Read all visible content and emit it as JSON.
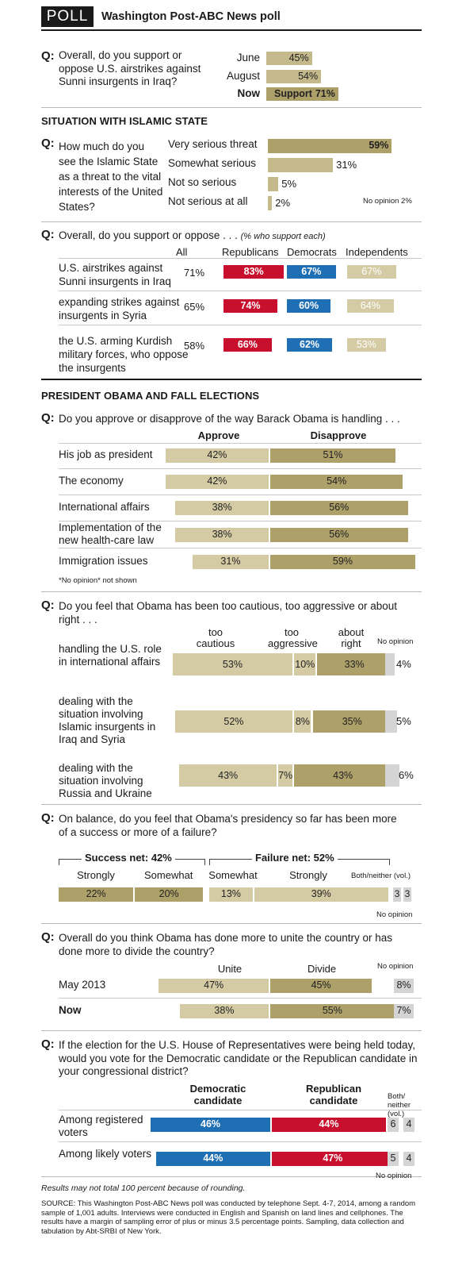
{
  "header": {
    "badge": "POLL",
    "title": "Washington Post-ABC News poll"
  },
  "q_marker": "Q:",
  "chart_data": [
    {
      "type": "bar",
      "question": "Overall, do you support or oppose U.S. airstrikes against Sunni insurgents in Iraq?",
      "categories": [
        "June",
        "August",
        "Now"
      ],
      "values": [
        45,
        54,
        71
      ],
      "value_labels": [
        "45%",
        "54%",
        "71%"
      ],
      "bar_text": "Support",
      "xlim": [
        0,
        100
      ]
    },
    {
      "type": "bar",
      "section": "SITUATION WITH ISLAMIC STATE",
      "question": "How much do you see the Islamic State as a threat to the vital interests of the United States?",
      "categories": [
        "Very serious threat",
        "Somewhat serious",
        "Not so serious",
        "Not serious at all"
      ],
      "values": [
        59,
        31,
        5,
        2
      ],
      "value_labels": [
        "59%",
        "31%",
        "5%",
        "2%"
      ],
      "note": "No opinion 2%",
      "xlim": [
        0,
        100
      ]
    },
    {
      "type": "table",
      "question": "Overall, do you support or oppose . . .",
      "question_note": "(% who support each)",
      "columns": [
        "All",
        "Republicans",
        "Democrats",
        "Independents"
      ],
      "rows": [
        {
          "label": "U.S. airstrikes against Sunni insurgents in Iraq",
          "all": "71%",
          "values": [
            83,
            67,
            67
          ],
          "labels": [
            "83%",
            "67%",
            "67%"
          ]
        },
        {
          "label": "expanding strikes against insurgents in Syria",
          "all": "65%",
          "values": [
            74,
            60,
            64
          ],
          "labels": [
            "74%",
            "60%",
            "64%"
          ]
        },
        {
          "label": "the U.S. arming Kurdish military forces, who oppose the insurgents",
          "all": "58%",
          "values": [
            66,
            62,
            53
          ],
          "labels": [
            "66%",
            "62%",
            "53%"
          ]
        }
      ]
    },
    {
      "type": "bar",
      "section": "PRESIDENT OBAMA AND FALL ELECTIONS",
      "question": "Do you approve or disapprove of the way Barack Obama is handling . . .",
      "series": [
        {
          "name": "Approve"
        },
        {
          "name": "Disapprove"
        }
      ],
      "rows": [
        {
          "label": "His job as president",
          "values": [
            42,
            51
          ],
          "labels": [
            "42%",
            "51%"
          ]
        },
        {
          "label": "The economy",
          "values": [
            42,
            54
          ],
          "labels": [
            "42%",
            "54%"
          ]
        },
        {
          "label": "International affairs",
          "values": [
            38,
            56
          ],
          "labels": [
            "38%",
            "56%"
          ]
        },
        {
          "label": "Implementation of the new health-care law",
          "values": [
            38,
            56
          ],
          "labels": [
            "38%",
            "56%"
          ]
        },
        {
          "label": "Immigration issues",
          "values": [
            31,
            59
          ],
          "labels": [
            "31%",
            "59%"
          ]
        }
      ],
      "note": "*No opinion* not shown"
    },
    {
      "type": "bar",
      "question": "Do you feel that Obama has been too cautious, too aggressive or about right . . .",
      "series": [
        {
          "name": "too cautious"
        },
        {
          "name": "too aggressive"
        },
        {
          "name": "about right"
        },
        {
          "name": "No opinion"
        }
      ],
      "rows": [
        {
          "label": "handling the U.S. role in international affairs",
          "values": [
            53,
            10,
            33,
            4
          ],
          "labels": [
            "53%",
            "10%",
            "33%",
            "4%"
          ]
        },
        {
          "label": "dealing with the situation involving Islamic insurgents in Iraq and Syria",
          "values": [
            52,
            8,
            35,
            5
          ],
          "labels": [
            "52%",
            "8%",
            "35%",
            "5%"
          ]
        },
        {
          "label": "dealing with the situation involving Russia and Ukraine",
          "values": [
            43,
            7,
            43,
            6
          ],
          "labels": [
            "43%",
            "7%",
            "43%",
            "6%"
          ]
        }
      ]
    },
    {
      "type": "bar",
      "question": "On balance, do you feel that Obama's presidency so far has been more of a success or more of a failure?",
      "success_net": "Success net: 42%",
      "failure_net": "Failure net: 52%",
      "series": [
        {
          "name": "Strongly"
        },
        {
          "name": "Somewhat"
        },
        {
          "name": "Somewhat"
        },
        {
          "name": "Strongly"
        },
        {
          "name": "Both/neither (vol.)"
        },
        {
          "name": "No opinion"
        }
      ],
      "values": [
        22,
        20,
        13,
        39,
        3,
        3
      ],
      "labels": [
        "22%",
        "20%",
        "13%",
        "39%",
        "3",
        "3"
      ]
    },
    {
      "type": "bar",
      "question": "Overall do you think Obama has done more to unite the country or has done more to divide the country?",
      "series": [
        {
          "name": "Unite"
        },
        {
          "name": "Divide"
        },
        {
          "name": "No opinion"
        }
      ],
      "rows": [
        {
          "label": "May 2013",
          "values": [
            47,
            45,
            8
          ],
          "labels": [
            "47%",
            "45%",
            "8%"
          ]
        },
        {
          "label": "Now",
          "values": [
            38,
            55,
            7
          ],
          "labels": [
            "38%",
            "55%",
            "7%"
          ]
        }
      ]
    },
    {
      "type": "bar",
      "question": "If the election for the U.S. House of Representatives were being held today, would you vote for the Democratic candidate or the Republican candidate in your congressional district?",
      "series": [
        {
          "name": "Democratic candidate"
        },
        {
          "name": "Republican candidate"
        },
        {
          "name": "Both/ neither (vol.)"
        },
        {
          "name": "No opinion"
        }
      ],
      "rows": [
        {
          "label": "Among registered voters",
          "values": [
            46,
            44,
            6,
            4
          ],
          "labels": [
            "46%",
            "44%",
            "6",
            "4"
          ]
        },
        {
          "label": "Among likely voters",
          "values": [
            44,
            47,
            5,
            4
          ],
          "labels": [
            "44%",
            "47%",
            "5",
            "4"
          ]
        }
      ]
    }
  ],
  "footer": {
    "rounding": "Results may not total 100 percent because of rounding.",
    "source": "SOURCE: This Washington Post-ABC News poll was conducted by telephone Sept. 4-7, 2014, among a random sample of 1,001 adults. Interviews were conducted in English and Spanish on land lines and cellphones. The results have a margin of sampling error of plus or minus 3.5 percentage points. Sampling, data collection and tabulation by Abt-SRBI of New York."
  },
  "colors": {
    "tan": "#c4b98a",
    "tan_dark": "#ada069",
    "red": "#c8102e",
    "blue": "#1f6fb5",
    "gray": "#d4d4d4"
  }
}
